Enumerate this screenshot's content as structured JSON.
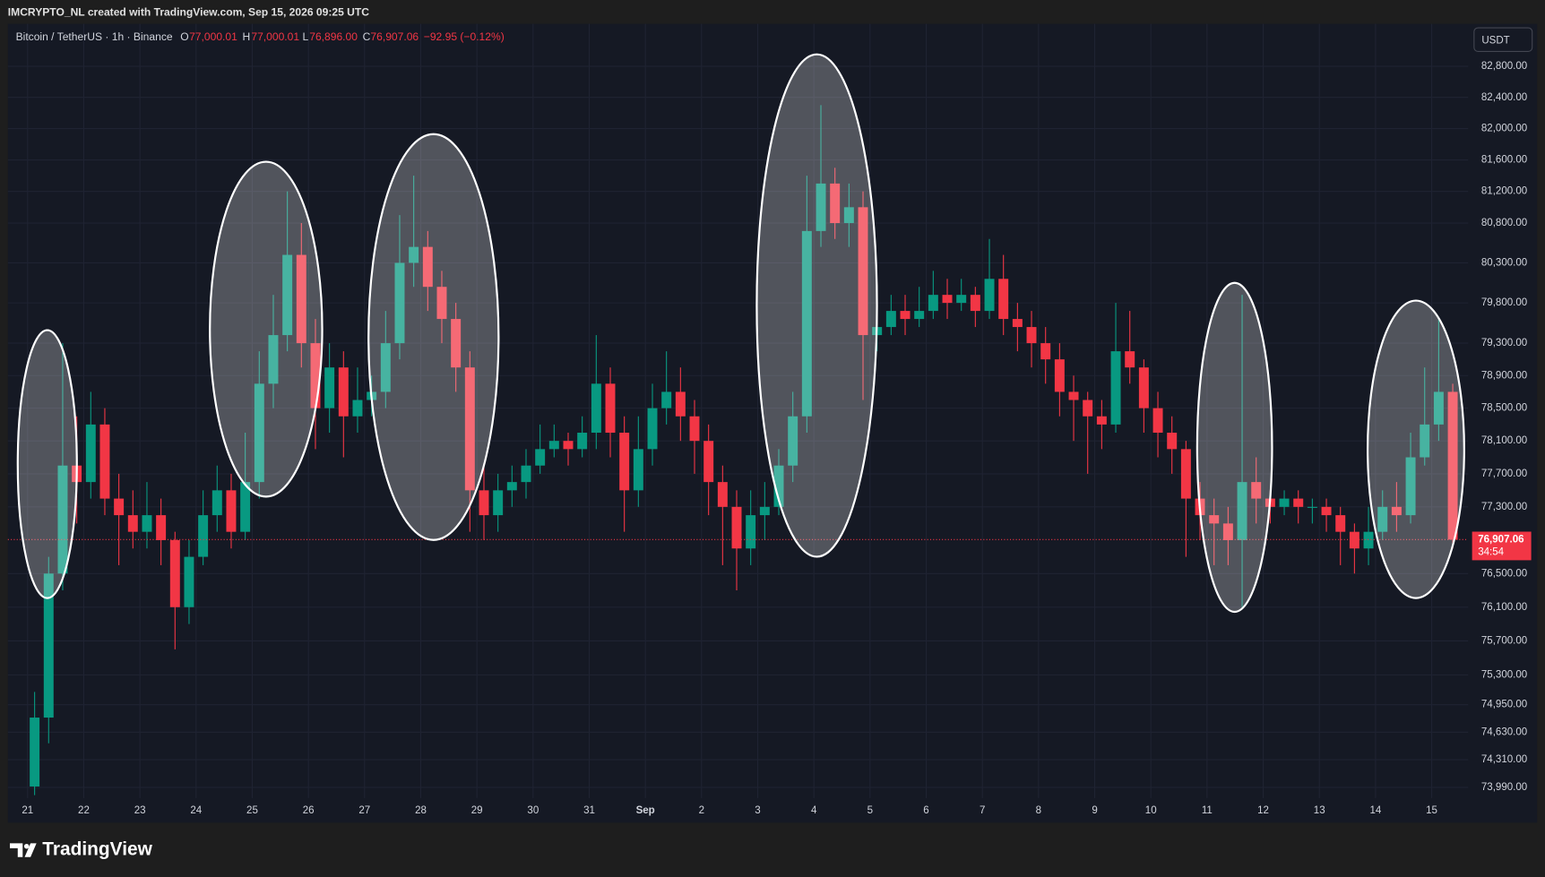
{
  "header": {
    "credit": "IMCRYPTO_NL created with TradingView.com, Sep 15, 2026 09:25 UTC"
  },
  "footer": {
    "brand": "TradingView"
  },
  "chart_data": {
    "type": "candlestick",
    "log": true,
    "grid": true,
    "legend": {
      "symbol": "Bitcoin / TetherUS · 1h · Binance",
      "o_label": "O",
      "open": "77,000.01",
      "h_label": "H",
      "high": "77,000.01",
      "l_label": "L",
      "low": "76,896.00",
      "c_label": "C",
      "close": "76,907.06",
      "change": "−92.95 (−0.12%)"
    },
    "currency": "USDT",
    "countdown": "34:54",
    "last_price": 76907.06,
    "last_price_label": "76,907.06",
    "up_color": "#089981",
    "down_color": "#f23645",
    "ylim": [
      73890,
      83300
    ],
    "yticks": [
      {
        "value": 82800,
        "label": "82,800.00"
      },
      {
        "value": 82400,
        "label": "82,400.00"
      },
      {
        "value": 82000,
        "label": "82,000.00"
      },
      {
        "value": 81600,
        "label": "81,600.00"
      },
      {
        "value": 81200,
        "label": "81,200.00"
      },
      {
        "value": 80800,
        "label": "80,800.00"
      },
      {
        "value": 80300,
        "label": "80,300.00"
      },
      {
        "value": 79800,
        "label": "79,800.00"
      },
      {
        "value": 79300,
        "label": "79,300.00"
      },
      {
        "value": 78900,
        "label": "78,900.00"
      },
      {
        "value": 78500,
        "label": "78,500.00"
      },
      {
        "value": 78100,
        "label": "78,100.00"
      },
      {
        "value": 77700,
        "label": "77,700.00"
      },
      {
        "value": 77300,
        "label": "77,300.00"
      },
      {
        "value": 76500,
        "label": "76,500.00"
      },
      {
        "value": 76100,
        "label": "76,100.00"
      },
      {
        "value": 75700,
        "label": "75,700.00"
      },
      {
        "value": 75300,
        "label": "75,300.00"
      },
      {
        "value": 74950,
        "label": "74,950.00"
      },
      {
        "value": 74630,
        "label": "74,630.00"
      },
      {
        "value": 74310,
        "label": "74,310.00"
      },
      {
        "value": 73990,
        "label": "73,990.00"
      }
    ],
    "categories": [
      "21",
      null,
      null,
      null,
      "22",
      null,
      null,
      null,
      "23",
      null,
      null,
      null,
      "24",
      null,
      null,
      null,
      "25",
      null,
      null,
      null,
      "26",
      null,
      null,
      null,
      "27",
      null,
      null,
      null,
      "28",
      null,
      null,
      null,
      "29",
      null,
      null,
      null,
      "30",
      null,
      null,
      null,
      "31",
      null,
      null,
      null,
      "Sep",
      null,
      null,
      null,
      "2",
      null,
      null,
      null,
      "3",
      null,
      null,
      null,
      "4",
      null,
      null,
      null,
      "5",
      null,
      null,
      null,
      "6",
      null,
      null,
      null,
      "7",
      null,
      null,
      null,
      "8",
      null,
      null,
      null,
      "9",
      null,
      null,
      null,
      "10",
      null,
      null,
      null,
      "11",
      null,
      null,
      null,
      "12",
      null,
      null,
      null,
      "13",
      null,
      null,
      null,
      "14",
      null,
      null,
      null,
      "15",
      null
    ],
    "open": [
      74000,
      74800,
      76500,
      77800,
      77600,
      78300,
      77400,
      77200,
      77000,
      77200,
      76900,
      76100,
      76700,
      77200,
      77500,
      77000,
      77600,
      78800,
      79400,
      80400,
      79300,
      78500,
      79000,
      78400,
      78600,
      78700,
      79300,
      80300,
      80500,
      80000,
      79600,
      79000,
      77500,
      77200,
      77500,
      77600,
      77800,
      78000,
      78100,
      78000,
      78200,
      78800,
      78200,
      77500,
      78000,
      78500,
      78700,
      78400,
      78100,
      77600,
      77300,
      76800,
      77200,
      77300,
      77800,
      78400,
      80700,
      81300,
      80800,
      81000,
      79400,
      79500,
      79700,
      79600,
      79700,
      79900,
      79800,
      79900,
      79700,
      80100,
      79600,
      79500,
      79300,
      79100,
      78700,
      78600,
      78400,
      78300,
      79200,
      79000,
      78500,
      78200,
      78000,
      77400,
      77200,
      77100,
      76900,
      77600,
      77400,
      77300,
      77400,
      77300,
      77300,
      77200,
      77000,
      76800,
      77000,
      77300,
      77200,
      77900,
      78300,
      78700
    ],
    "high": [
      75100,
      76700,
      79300,
      78400,
      78700,
      78500,
      77700,
      77500,
      77600,
      77400,
      77000,
      76900,
      77500,
      77800,
      77700,
      78200,
      79200,
      79900,
      81200,
      80800,
      79600,
      79300,
      79200,
      79000,
      78900,
      79700,
      80900,
      81400,
      80700,
      80200,
      79800,
      79200,
      77800,
      77700,
      77800,
      78000,
      78300,
      78300,
      78200,
      78400,
      79400,
      79000,
      78400,
      78400,
      78800,
      79200,
      79000,
      78600,
      78300,
      77800,
      77500,
      77500,
      77600,
      78000,
      78700,
      81400,
      82300,
      81500,
      81300,
      81200,
      79800,
      79900,
      79900,
      80000,
      80200,
      80100,
      80100,
      80000,
      80600,
      80400,
      79800,
      79700,
      79500,
      79300,
      78900,
      78700,
      78600,
      79800,
      79700,
      79100,
      78700,
      78400,
      78100,
      77600,
      77400,
      77300,
      79900,
      77900,
      77500,
      77500,
      77500,
      77400,
      77400,
      77300,
      77100,
      77300,
      77500,
      77600,
      78200,
      79000,
      79600,
      78800
    ],
    "low": [
      73900,
      74500,
      76300,
      77100,
      77400,
      77200,
      76600,
      76800,
      76800,
      76600,
      75600,
      75900,
      76600,
      77000,
      76800,
      76900,
      77400,
      78500,
      79200,
      79000,
      78000,
      78200,
      77900,
      78200,
      78400,
      78500,
      79100,
      80000,
      79700,
      79300,
      78700,
      77000,
      76900,
      77000,
      77300,
      77400,
      77700,
      77900,
      77800,
      77900,
      78000,
      77900,
      77000,
      77300,
      77800,
      78300,
      78100,
      77700,
      77200,
      76600,
      76300,
      76600,
      76900,
      77200,
      77600,
      78200,
      80500,
      80600,
      80500,
      78600,
      79200,
      79400,
      79400,
      79500,
      79600,
      79600,
      79700,
      79500,
      79600,
      79400,
      79200,
      79000,
      78800,
      78400,
      78100,
      77700,
      78000,
      78200,
      78800,
      78200,
      77900,
      77700,
      76700,
      76900,
      76600,
      76600,
      76100,
      77100,
      77100,
      77200,
      77100,
      77100,
      77000,
      76600,
      76500,
      76600,
      76900,
      77000,
      77100,
      77800,
      78100,
      76800
    ],
    "close": [
      74800,
      76500,
      77800,
      77600,
      78300,
      77400,
      77200,
      77000,
      77200,
      76900,
      76100,
      76700,
      77200,
      77500,
      77000,
      77600,
      78800,
      79400,
      80400,
      79300,
      78500,
      79000,
      78400,
      78600,
      78700,
      79300,
      80300,
      80500,
      80000,
      79600,
      79000,
      77500,
      77200,
      77500,
      77600,
      77800,
      78000,
      78100,
      78000,
      78200,
      78800,
      78200,
      77500,
      78000,
      78500,
      78700,
      78400,
      78100,
      77600,
      77300,
      76800,
      77200,
      77300,
      77800,
      78400,
      80700,
      81300,
      80800,
      81000,
      79400,
      79500,
      79700,
      79600,
      79700,
      79900,
      79800,
      79900,
      79700,
      80100,
      79600,
      79500,
      79300,
      79100,
      78700,
      78600,
      78400,
      78300,
      79200,
      79000,
      78500,
      78200,
      78000,
      77400,
      77200,
      77100,
      76900,
      77600,
      77400,
      77300,
      77400,
      77300,
      77300,
      77200,
      77000,
      76800,
      77000,
      77300,
      77200,
      77900,
      78300,
      78700,
      76907.06
    ]
  }
}
